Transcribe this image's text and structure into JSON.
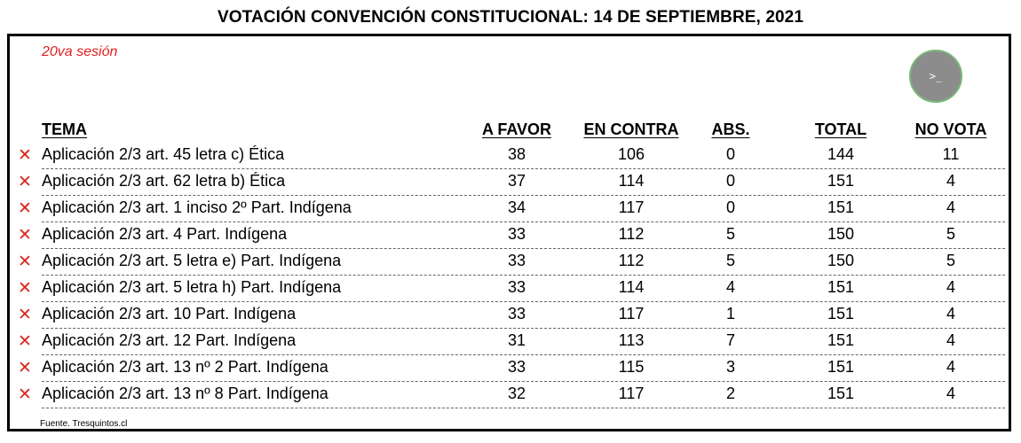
{
  "title": "VOTACIÓN CONVENCIÓN CONSTITUCIONAL: 14 DE SEPTIEMBRE, 2021",
  "session": "20va sesión",
  "logo_text": ">_",
  "colors": {
    "session": "#e02020",
    "reject_mark": "#d9271c",
    "logo_bg": "#8c8c8c",
    "logo_ring": "#79b979"
  },
  "icons": {
    "reject": "x-mark-icon",
    "logo": "terminal-icon"
  },
  "reject_symbol": "✕",
  "columns": {
    "tema": "TEMA",
    "favor": "A FAVOR",
    "contra": "EN CONTRA",
    "abs": "ABS.",
    "total": "TOTAL",
    "novota": "NO VOTA"
  },
  "rows": [
    {
      "tema": "Aplicación 2/3 art. 45 letra c) Ética",
      "favor": "38",
      "contra": "106",
      "abs": "0",
      "total": "144",
      "novota": "11"
    },
    {
      "tema": "Aplicación 2/3 art. 62 letra b) Ética",
      "favor": "37",
      "contra": "114",
      "abs": "0",
      "total": "151",
      "novota": "4"
    },
    {
      "tema": "Aplicación 2/3 art. 1 inciso 2º Part. Indígena",
      "favor": "34",
      "contra": "117",
      "abs": "0",
      "total": "151",
      "novota": "4"
    },
    {
      "tema": "Aplicación 2/3 art. 4 Part. Indígena",
      "favor": "33",
      "contra": "112",
      "abs": "5",
      "total": "150",
      "novota": "5"
    },
    {
      "tema": "Aplicación 2/3 art. 5 letra e) Part. Indígena",
      "favor": "33",
      "contra": "112",
      "abs": "5",
      "total": "150",
      "novota": "5"
    },
    {
      "tema": "Aplicación 2/3 art. 5 letra h) Part. Indígena",
      "favor": "33",
      "contra": "114",
      "abs": "4",
      "total": "151",
      "novota": "4"
    },
    {
      "tema": "Aplicación 2/3 art. 10 Part. Indígena",
      "favor": "33",
      "contra": "117",
      "abs": "1",
      "total": "151",
      "novota": "4"
    },
    {
      "tema": "Aplicación 2/3 art. 12 Part. Indígena",
      "favor": "31",
      "contra": "113",
      "abs": "7",
      "total": "151",
      "novota": "4"
    },
    {
      "tema": "Aplicación 2/3 art. 13 nº 2 Part. Indígena",
      "favor": "33",
      "contra": "115",
      "abs": "3",
      "total": "151",
      "novota": "4"
    },
    {
      "tema": "Aplicación 2/3 art. 13 nº 8 Part. Indígena",
      "favor": "32",
      "contra": "117",
      "abs": "2",
      "total": "151",
      "novota": "4"
    }
  ],
  "source": "Fuente. Tresquintos.cl"
}
